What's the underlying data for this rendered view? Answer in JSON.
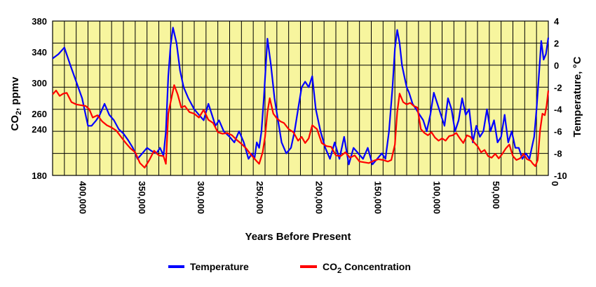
{
  "chart_data": {
    "type": "line",
    "title": "",
    "xlabel": "Years Before Present",
    "ylabel_left": "CO2, ppmv",
    "ylabel_left_main": "CO",
    "ylabel_left_sub": "2",
    "ylabel_left_suffix": ", ppmv",
    "ylabel_right": "Temperature, °C",
    "xlim": [
      420000,
      0
    ],
    "ylim_left": [
      180,
      380
    ],
    "ylim_right": [
      -10,
      4
    ],
    "x_ticks": [
      {
        "value": 400000,
        "label": "400,000"
      },
      {
        "value": 350000,
        "label": "350,000"
      },
      {
        "value": 300000,
        "label": "300,000"
      },
      {
        "value": 250000,
        "label": "250,000"
      },
      {
        "value": 200000,
        "label": "200,000"
      },
      {
        "value": 150000,
        "label": "150,000"
      },
      {
        "value": 100000,
        "label": "100,000"
      },
      {
        "value": 50000,
        "label": "50,000"
      },
      {
        "value": 0,
        "label": "0"
      }
    ],
    "y_left_ticks": [
      {
        "value": 380,
        "label": "380"
      },
      {
        "value": 340,
        "label": "340"
      },
      {
        "value": 300,
        "label": "300"
      },
      {
        "value": 260,
        "label": "260"
      },
      {
        "value": 240,
        "label": "240"
      },
      {
        "value": 180,
        "label": "180"
      }
    ],
    "y_right_ticks": [
      {
        "value": 4,
        "label": "4"
      },
      {
        "value": 2,
        "label": "2"
      },
      {
        "value": 0,
        "label": "0"
      },
      {
        "value": -2,
        "label": "-2"
      },
      {
        "value": -4,
        "label": "-4"
      },
      {
        "value": -6,
        "label": "-6"
      },
      {
        "value": -8,
        "label": "-8"
      },
      {
        "value": -10,
        "label": "-10"
      }
    ],
    "grid": true,
    "legend_position": "bottom",
    "background_color": "#f7f59e",
    "series": [
      {
        "name": "Temperature",
        "axis": "right",
        "color": "#0000ff",
        "x": [
          420000,
          415000,
          410000,
          405000,
          400000,
          395000,
          390000,
          387000,
          383000,
          380000,
          376000,
          372000,
          368000,
          364000,
          360000,
          356000,
          352000,
          348000,
          344000,
          340000,
          336000,
          332000,
          329000,
          326000,
          324000,
          322000,
          320000,
          318000,
          315000,
          312000,
          309000,
          305000,
          300000,
          296000,
          292000,
          288000,
          285000,
          282000,
          279000,
          275000,
          270000,
          266000,
          262000,
          258000,
          254000,
          251000,
          249000,
          247000,
          245000,
          243000,
          241000,
          238000,
          235000,
          232000,
          229000,
          226000,
          222000,
          218000,
          215000,
          212000,
          209000,
          206000,
          203000,
          200000,
          197000,
          193000,
          189000,
          185000,
          181000,
          177000,
          173000,
          169000,
          165000,
          161000,
          157000,
          153000,
          149000,
          145000,
          141000,
          138000,
          135000,
          132000,
          130000,
          128000,
          126000,
          124000,
          122000,
          120000,
          118000,
          115000,
          112000,
          109000,
          106000,
          103000,
          100000,
          97000,
          94000,
          91000,
          88000,
          85000,
          82000,
          79000,
          76000,
          73000,
          70000,
          67000,
          64000,
          61000,
          58000,
          55000,
          52000,
          49000,
          46000,
          43000,
          40000,
          37000,
          34000,
          31000,
          28000,
          25000,
          22000,
          19000,
          16000,
          14000,
          12000,
          10000,
          8000,
          6000,
          4000,
          2000,
          0
        ],
        "values": [
          0.6,
          1.0,
          1.6,
          0.0,
          -1.5,
          -3.0,
          -5.5,
          -5.5,
          -5.0,
          -4.5,
          -3.5,
          -4.5,
          -5.0,
          -5.8,
          -6.2,
          -6.8,
          -7.5,
          -8.5,
          -8.0,
          -7.5,
          -7.8,
          -8.0,
          -7.5,
          -8.2,
          -6.0,
          -1.0,
          1.8,
          3.4,
          2.0,
          -0.5,
          -2.0,
          -3.0,
          -4.0,
          -4.5,
          -5.0,
          -3.5,
          -4.5,
          -5.5,
          -5.0,
          -6.0,
          -6.5,
          -7.0,
          -6.0,
          -7.0,
          -8.5,
          -8.0,
          -8.5,
          -7.0,
          -7.5,
          -6.0,
          -3.0,
          2.4,
          0.0,
          -3.0,
          -5.0,
          -7.0,
          -8.0,
          -7.5,
          -6.0,
          -4.0,
          -2.0,
          -1.5,
          -2.0,
          -1.0,
          -4.0,
          -6.0,
          -7.5,
          -8.5,
          -7.0,
          -8.5,
          -6.5,
          -9.0,
          -7.5,
          -8.0,
          -8.5,
          -7.5,
          -9.0,
          -8.5,
          -8.0,
          -8.5,
          -6.0,
          -2.0,
          1.5,
          3.2,
          2.0,
          0.0,
          -1.0,
          -2.0,
          -2.5,
          -3.5,
          -4.0,
          -4.5,
          -5.0,
          -6.0,
          -4.5,
          -2.5,
          -3.5,
          -4.5,
          -5.5,
          -3.0,
          -4.0,
          -6.0,
          -5.0,
          -3.0,
          -4.5,
          -4.0,
          -7.0,
          -5.5,
          -6.5,
          -6.0,
          -4.0,
          -6.0,
          -5.0,
          -7.0,
          -6.5,
          -4.5,
          -7.0,
          -6.0,
          -7.5,
          -7.5,
          -8.5,
          -8.0,
          -8.5,
          -7.5,
          -6.5,
          -4.0,
          -1.0,
          2.2,
          0.5,
          1.0,
          2.5
        ]
      },
      {
        "name": "CO2 Concentration",
        "name_main": "CO",
        "name_sub": "2",
        "name_suffix": " Concentration",
        "axis": "left",
        "color": "#ff0000",
        "x": [
          420000,
          417000,
          414000,
          411000,
          408000,
          404000,
          400000,
          396000,
          392000,
          389000,
          386000,
          382000,
          378000,
          374000,
          370000,
          366000,
          362000,
          358000,
          354000,
          350000,
          346000,
          342000,
          338000,
          334000,
          330000,
          326000,
          324000,
          322000,
          320000,
          317000,
          314000,
          311000,
          308000,
          304000,
          300000,
          296000,
          292000,
          288000,
          284000,
          280000,
          276000,
          272000,
          268000,
          264000,
          260000,
          256000,
          252000,
          248000,
          245000,
          242000,
          240000,
          238000,
          236000,
          233000,
          230000,
          227000,
          224000,
          220000,
          216000,
          212000,
          209000,
          206000,
          203000,
          200000,
          196000,
          192000,
          188000,
          184000,
          180000,
          176000,
          172000,
          168000,
          164000,
          160000,
          156000,
          152000,
          148000,
          144000,
          140000,
          136000,
          133000,
          130000,
          128000,
          126000,
          123000,
          120000,
          117000,
          114000,
          111000,
          108000,
          105000,
          102000,
          99000,
          96000,
          93000,
          90000,
          87000,
          84000,
          81000,
          78000,
          75000,
          72000,
          69000,
          66000,
          63000,
          60000,
          57000,
          54000,
          51000,
          48000,
          45000,
          42000,
          39000,
          36000,
          33000,
          30000,
          27000,
          24000,
          21000,
          18000,
          15000,
          13000,
          11000,
          9000,
          7000,
          5000,
          3000,
          1500,
          0
        ],
        "values": [
          285,
          290,
          283,
          286,
          287,
          275,
          272,
          271,
          270,
          266,
          255,
          258,
          250,
          245,
          242,
          238,
          230,
          222,
          215,
          210,
          196,
          190,
          200,
          212,
          206,
          205,
          195,
          260,
          275,
          297,
          285,
          268,
          270,
          262,
          260,
          255,
          265,
          252,
          248,
          236,
          234,
          235,
          232,
          226,
          221,
          215,
          207,
          200,
          195,
          210,
          230,
          262,
          280,
          260,
          254,
          250,
          248,
          240,
          236,
          225,
          230,
          222,
          228,
          245,
          240,
          222,
          218,
          217,
          206,
          205,
          210,
          203,
          206,
          198,
          197,
          196,
          199,
          201,
          200,
          198,
          200,
          220,
          262,
          286,
          275,
          272,
          274,
          270,
          268,
          240,
          235,
          232,
          236,
          229,
          225,
          228,
          225,
          231,
          232,
          235,
          228,
          222,
          232,
          230,
          223,
          218,
          210,
          213,
          205,
          203,
          208,
          202,
          208,
          215,
          220,
          205,
          200,
          202,
          208,
          201,
          199,
          195,
          192,
          200,
          238,
          260,
          258,
          270,
          290
        ]
      }
    ]
  }
}
